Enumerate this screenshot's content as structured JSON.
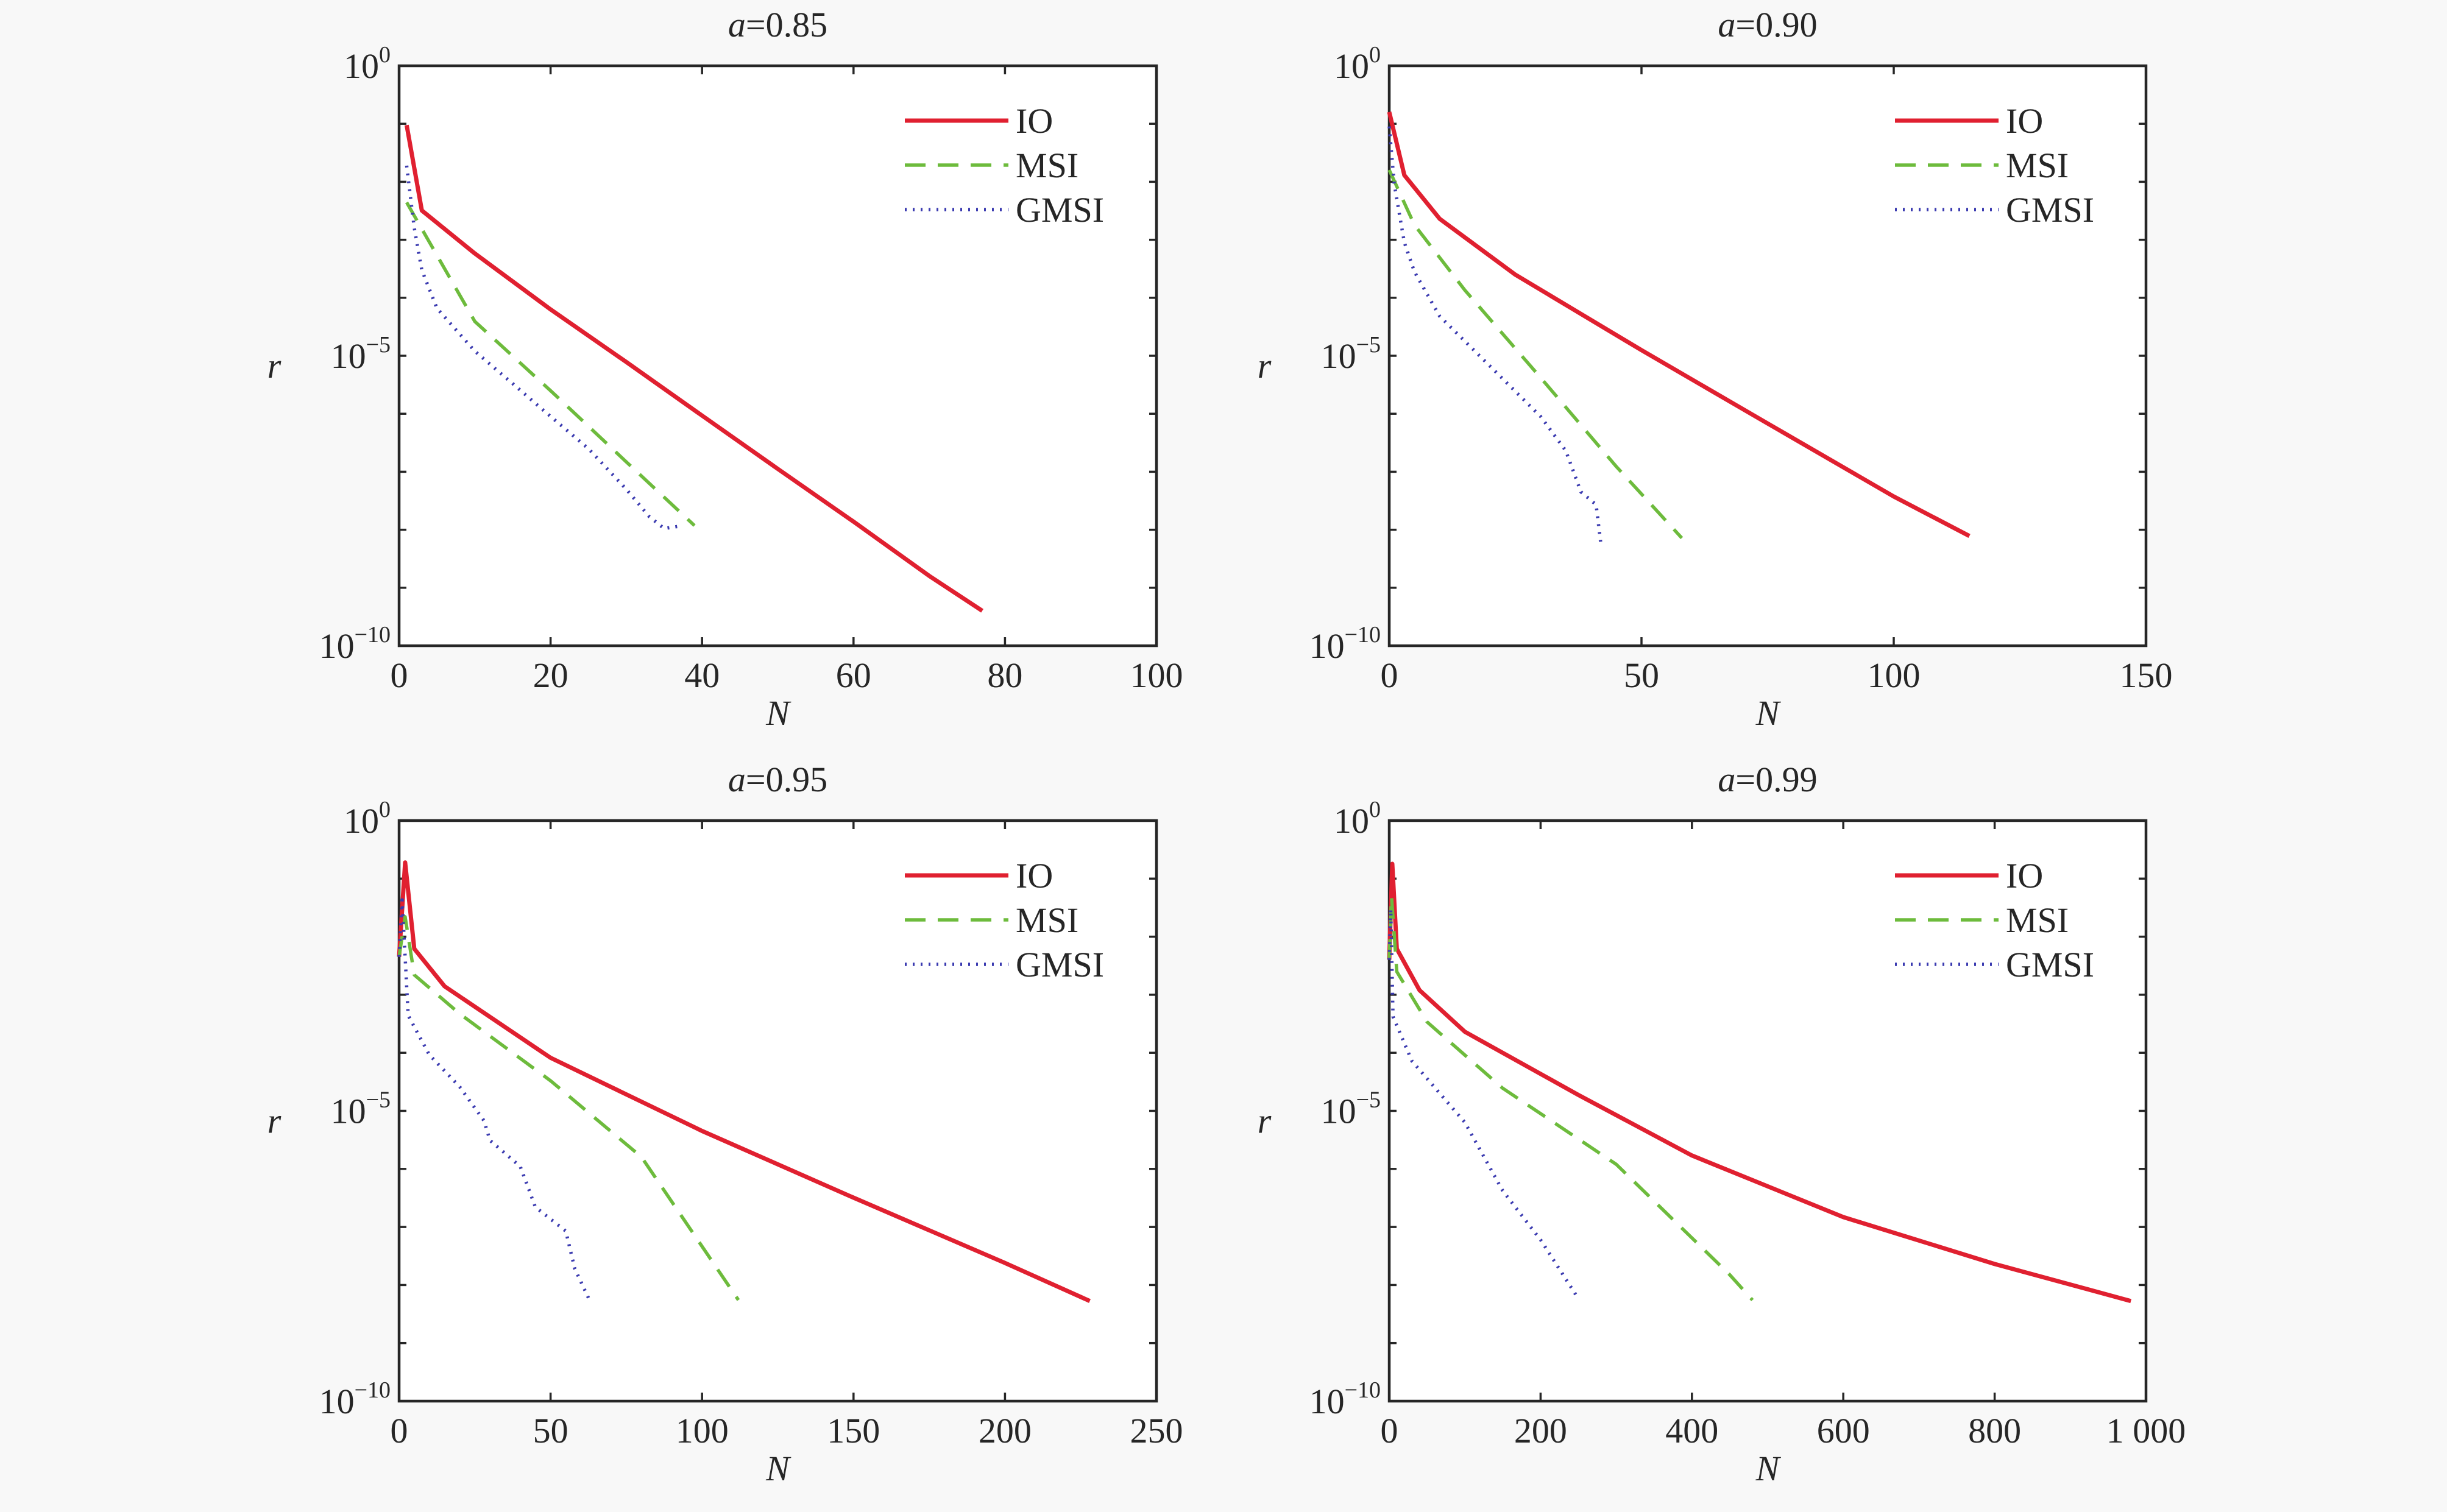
{
  "chart_data": [
    {
      "type": "line",
      "title": {
        "var": "a",
        "eq": "=0.85"
      },
      "xlabel": "N",
      "ylabel": "r",
      "yscale": "log",
      "xlim": [
        0,
        100
      ],
      "xticks": [
        "0",
        "20",
        "40",
        "60",
        "80",
        "100"
      ],
      "ylim": [
        1e-10,
        1
      ],
      "yticks": [
        {
          "base": "10",
          "exp": "0",
          "value": 1
        },
        {
          "base": "10",
          "exp": "−5",
          "value": 1e-05
        },
        {
          "base": "10",
          "exp": "−10",
          "value": 1e-10
        }
      ],
      "legend": "top-right",
      "grid": false,
      "series": [
        {
          "name": "IO",
          "color": "#e02030",
          "dash": "solid",
          "points": [
            [
              1,
              0.095
            ],
            [
              3,
              0.0032
            ],
            [
              10,
              0.00058
            ],
            [
              20,
              6.3e-05
            ],
            [
              30,
              7.8e-06
            ],
            [
              40,
              9.3e-07
            ],
            [
              50,
              1.12e-07
            ],
            [
              60,
              1.38e-08
            ],
            [
              70,
              1.6e-09
            ],
            [
              77,
              4e-10
            ]
          ]
        },
        {
          "name": "MSI",
          "color": "#6dbb3c",
          "dash": "dash",
          "points": [
            [
              1,
              0.0044
            ],
            [
              10,
              3.9e-05
            ],
            [
              20,
              2.5e-06
            ],
            [
              30,
              1.48e-07
            ],
            [
              39,
              1.18e-08
            ]
          ]
        },
        {
          "name": "GMSI",
          "color": "#3a3ab0",
          "dash": "dot",
          "points": [
            [
              1,
              0.019
            ],
            [
              2,
              0.0016
            ],
            [
              3,
              0.0003
            ],
            [
              5,
              6.6e-05
            ],
            [
              10,
              1.2e-05
            ],
            [
              15,
              3.3e-06
            ],
            [
              20,
              9e-07
            ],
            [
              25,
              2.5e-07
            ],
            [
              30,
              5e-08
            ],
            [
              33,
              1.7e-08
            ],
            [
              35,
              1.05e-08
            ],
            [
              37,
              1.15e-08
            ]
          ]
        }
      ]
    },
    {
      "type": "line",
      "title": {
        "var": "a",
        "eq": "=0.90"
      },
      "xlabel": "N",
      "ylabel": "r",
      "yscale": "log",
      "xlim": [
        0,
        150
      ],
      "xticks": [
        "0",
        "50",
        "100",
        "150"
      ],
      "ylim": [
        1e-10,
        1
      ],
      "yticks": [
        {
          "base": "10",
          "exp": "0",
          "value": 1
        },
        {
          "base": "10",
          "exp": "−5",
          "value": 1e-05
        },
        {
          "base": "10",
          "exp": "−10",
          "value": 1e-10
        }
      ],
      "legend": "top-right",
      "grid": false,
      "series": [
        {
          "name": "IO",
          "color": "#e02030",
          "dash": "solid",
          "points": [
            [
              0,
              0.16
            ],
            [
              3,
              0.013
            ],
            [
              10,
              0.0023
            ],
            [
              25,
              0.00025
            ],
            [
              50,
              1.25e-05
            ],
            [
              75,
              6.8e-07
            ],
            [
              100,
              3.75e-08
            ],
            [
              115,
              7.8e-09
            ]
          ]
        },
        {
          "name": "MSI",
          "color": "#6dbb3c",
          "dash": "dash",
          "points": [
            [
              0,
              0.016
            ],
            [
              5,
              0.0018
            ],
            [
              15,
              0.000135
            ],
            [
              30,
              4.2e-06
            ],
            [
              45,
              1.23e-07
            ],
            [
              58,
              7.2e-09
            ]
          ]
        },
        {
          "name": "GMSI",
          "color": "#3a3ab0",
          "dash": "dot",
          "points": [
            [
              0,
              0.09
            ],
            [
              1,
              0.009
            ],
            [
              3,
              0.0009
            ],
            [
              5,
              0.00028
            ],
            [
              10,
              4.8e-05
            ],
            [
              20,
              6.6e-06
            ],
            [
              30,
              9e-07
            ],
            [
              35,
              2.3e-07
            ],
            [
              38,
              4.5e-08
            ],
            [
              41,
              2.7e-08
            ],
            [
              42,
              5.2e-09
            ]
          ]
        }
      ]
    },
    {
      "type": "line",
      "title": {
        "var": "a",
        "eq": "=0.95"
      },
      "xlabel": "N",
      "ylabel": "r",
      "yscale": "log",
      "xlim": [
        0,
        250
      ],
      "xticks": [
        "0",
        "50",
        "100",
        "150",
        "200",
        "250"
      ],
      "ylim": [
        1e-10,
        1
      ],
      "yticks": [
        {
          "base": "10",
          "exp": "0",
          "value": 1
        },
        {
          "base": "10",
          "exp": "−5",
          "value": 1e-05
        },
        {
          "base": "10",
          "exp": "−10",
          "value": 1e-10
        }
      ],
      "legend": "top-right",
      "grid": false,
      "series": [
        {
          "name": "IO",
          "color": "#e02030",
          "dash": "solid",
          "points": [
            [
              0,
              0.0045
            ],
            [
              2,
              0.19
            ],
            [
              5,
              0.0062
            ],
            [
              15,
              0.0014
            ],
            [
              50,
              8.2e-05
            ],
            [
              100,
              4.5e-06
            ],
            [
              150,
              3.2e-07
            ],
            [
              200,
              2.4e-08
            ],
            [
              228,
              5.3e-09
            ]
          ]
        },
        {
          "name": "MSI",
          "color": "#6dbb3c",
          "dash": "dash",
          "points": [
            [
              0,
              0.0045
            ],
            [
              2,
              0.022
            ],
            [
              5,
              0.0022
            ],
            [
              20,
              0.00047
            ],
            [
              50,
              3.3e-05
            ],
            [
              80,
              1.6e-06
            ],
            [
              112,
              5.5e-09
            ]
          ]
        },
        {
          "name": "GMSI",
          "color": "#3a3ab0",
          "dash": "dot",
          "points": [
            [
              0,
              0.0045
            ],
            [
              1,
              0.043
            ],
            [
              3,
              0.00044
            ],
            [
              10,
              9.2e-05
            ],
            [
              20,
              2.6e-05
            ],
            [
              28,
              6.8e-06
            ],
            [
              30,
              3.1e-06
            ],
            [
              40,
              1.1e-06
            ],
            [
              45,
              2.2e-07
            ],
            [
              55,
              8.5e-08
            ],
            [
              58,
              1.9e-08
            ],
            [
              63,
              5.3e-09
            ]
          ]
        }
      ]
    },
    {
      "type": "line",
      "title": {
        "var": "a",
        "eq": "=0.99"
      },
      "xlabel": "N",
      "ylabel": "r",
      "yscale": "log",
      "xlim": [
        0,
        1000
      ],
      "xticks": [
        "0",
        "200",
        "400",
        "600",
        "800",
        "1 000"
      ],
      "ylim": [
        1e-10,
        1
      ],
      "yticks": [
        {
          "base": "10",
          "exp": "0",
          "value": 1
        },
        {
          "base": "10",
          "exp": "−5",
          "value": 1e-05
        },
        {
          "base": "10",
          "exp": "−10",
          "value": 1e-10
        }
      ],
      "legend": "top-right",
      "grid": false,
      "series": [
        {
          "name": "IO",
          "color": "#e02030",
          "dash": "solid",
          "points": [
            [
              0,
              0.004
            ],
            [
              4,
              0.18
            ],
            [
              10,
              0.0062
            ],
            [
              40,
              0.0012
            ],
            [
              100,
              0.00023
            ],
            [
              250,
              1.88e-05
            ],
            [
              400,
              1.7e-06
            ],
            [
              600,
              1.48e-07
            ],
            [
              800,
              2.3e-08
            ],
            [
              980,
              5.3e-09
            ]
          ]
        },
        {
          "name": "MSI",
          "color": "#6dbb3c",
          "dash": "dash",
          "points": [
            [
              0,
              0.004
            ],
            [
              3,
              0.05
            ],
            [
              10,
              0.0025
            ],
            [
              50,
              0.00034
            ],
            [
              150,
              2.45e-05
            ],
            [
              300,
              1.2e-06
            ],
            [
              450,
              1.5e-08
            ],
            [
              480,
              5.5e-09
            ]
          ]
        },
        {
          "name": "GMSI",
          "color": "#3a3ab0",
          "dash": "dot",
          "points": [
            [
              0,
              0.004
            ],
            [
              2,
              0.03
            ],
            [
              5,
              0.00042
            ],
            [
              30,
              7.2e-05
            ],
            [
              100,
              6.3e-06
            ],
            [
              150,
              4.2e-07
            ],
            [
              200,
              6e-08
            ],
            [
              250,
              5.8e-09
            ]
          ]
        }
      ]
    }
  ]
}
